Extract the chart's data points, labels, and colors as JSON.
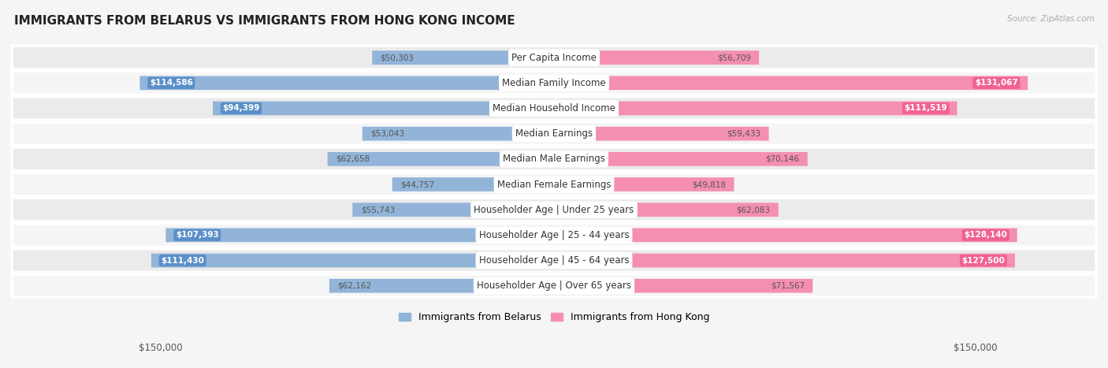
{
  "title": "IMMIGRANTS FROM BELARUS VS IMMIGRANTS FROM HONG KONG INCOME",
  "source": "Source: ZipAtlas.com",
  "categories": [
    "Per Capita Income",
    "Median Family Income",
    "Median Household Income",
    "Median Earnings",
    "Median Male Earnings",
    "Median Female Earnings",
    "Householder Age | Under 25 years",
    "Householder Age | 25 - 44 years",
    "Householder Age | 45 - 64 years",
    "Householder Age | Over 65 years"
  ],
  "belarus_values": [
    50303,
    114586,
    94399,
    53043,
    62658,
    44757,
    55743,
    107393,
    111430,
    62162
  ],
  "hongkong_values": [
    56709,
    131067,
    111519,
    59433,
    70146,
    49818,
    62083,
    128140,
    127500,
    71567
  ],
  "belarus_labels": [
    "$50,303",
    "$114,586",
    "$94,399",
    "$53,043",
    "$62,658",
    "$44,757",
    "$55,743",
    "$107,393",
    "$111,430",
    "$62,162"
  ],
  "hongkong_labels": [
    "$56,709",
    "$131,067",
    "$111,519",
    "$59,433",
    "$70,146",
    "$49,818",
    "$62,083",
    "$128,140",
    "$127,500",
    "$71,567"
  ],
  "max_value": 150000,
  "belarus_color": "#92b4d8",
  "hongkong_color": "#f48fb1",
  "belarus_inside_color": "#5b8fc9",
  "hongkong_inside_color": "#f06292",
  "label_inside_threshold": 75000,
  "background_color": "#f5f5f5",
  "row_color_even": "#ebebeb",
  "row_color_odd": "#f5f5f5",
  "legend_belarus": "Immigrants from Belarus",
  "legend_hongkong": "Immigrants from Hong Kong",
  "xlabel_left": "$150,000",
  "xlabel_right": "$150,000",
  "title_fontsize": 11,
  "label_fontsize": 8,
  "cat_fontsize": 8.5,
  "val_fontsize": 7.5
}
